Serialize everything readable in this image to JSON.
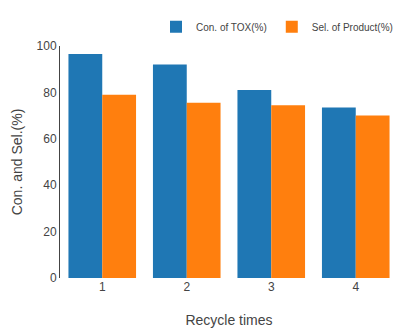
{
  "chart_data": {
    "type": "bar",
    "categories": [
      1,
      2,
      3,
      4
    ],
    "series": [
      {
        "name": "Con. of TOX(%)",
        "values": [
          96.5,
          92.0,
          81.0,
          73.5
        ]
      },
      {
        "name": "Sel. of Product(%)",
        "values": [
          79.0,
          75.5,
          74.5,
          70.0
        ]
      }
    ],
    "x_label": "Recycle times",
    "y_label": "Con. and Sel.(%)",
    "ylim": [
      0,
      100
    ],
    "yticks": [
      0,
      20,
      40,
      60,
      80,
      100
    ],
    "grid": false,
    "legend": "upper right"
  }
}
